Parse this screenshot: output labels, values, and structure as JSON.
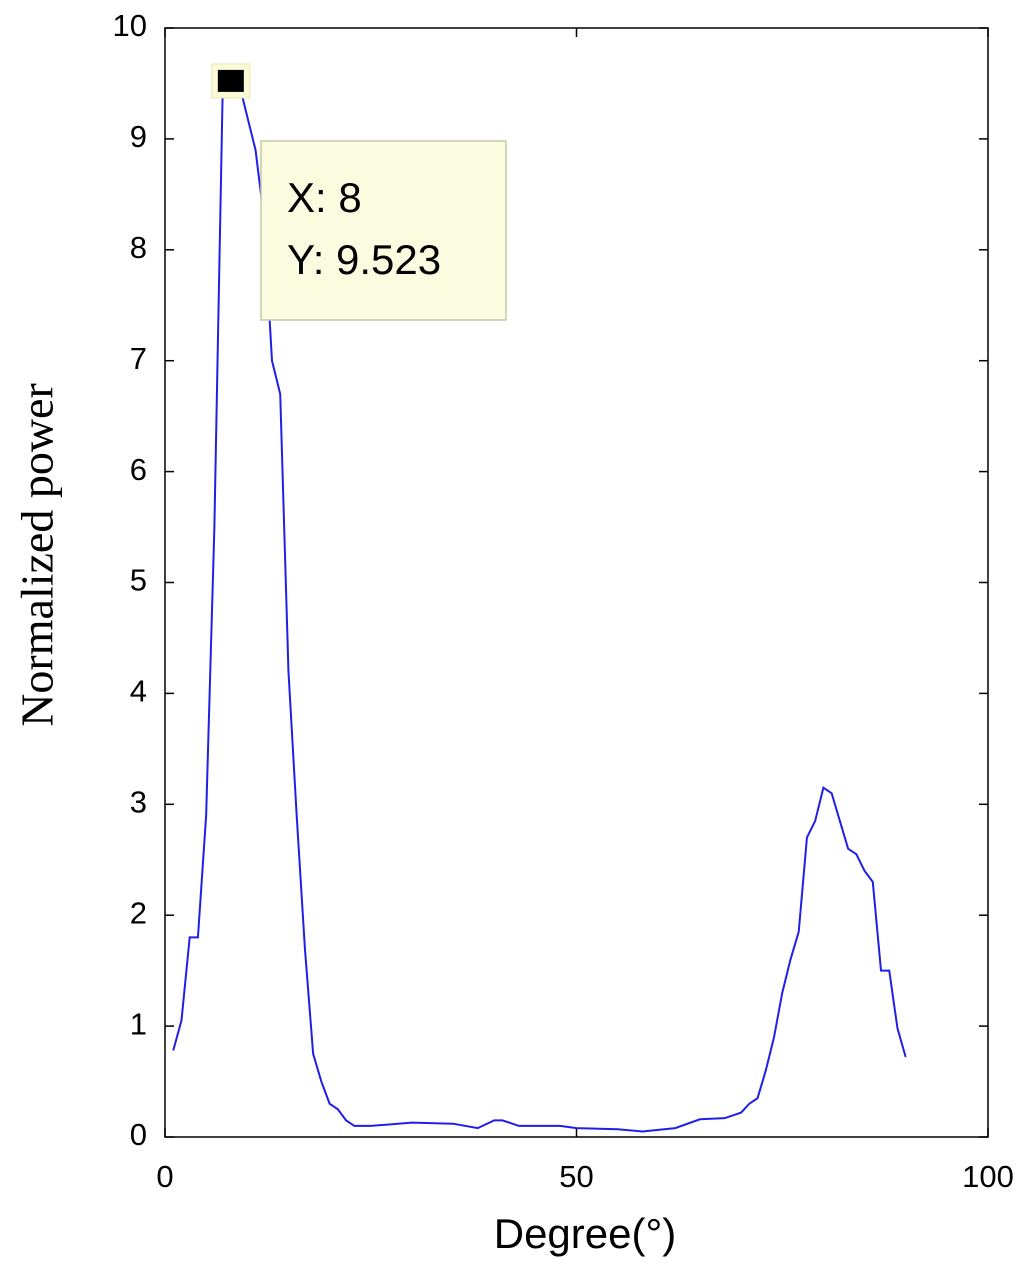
{
  "chart_data": {
    "type": "line",
    "x_label": "Degree(°)",
    "y_label": "Normalized power",
    "x": [
      1,
      2,
      3,
      4,
      5,
      6,
      7,
      8,
      9,
      10,
      11,
      12,
      13,
      14,
      15,
      16,
      17,
      18,
      19,
      20,
      21,
      22,
      23,
      25,
      30,
      35,
      38,
      40,
      41,
      43,
      48,
      50,
      55,
      58,
      62,
      65,
      68,
      70,
      71,
      72,
      73,
      74,
      75,
      76,
      77,
      78,
      79,
      80,
      81,
      82,
      83,
      84,
      85,
      86,
      87,
      88,
      89,
      90
    ],
    "series": [
      {
        "name": "power",
        "color": "#1f1fe8",
        "values": [
          0.78,
          1.05,
          1.8,
          1.8,
          2.9,
          5.5,
          9.4,
          9.523,
          9.5,
          9.2,
          8.9,
          8.3,
          7.0,
          6.7,
          4.2,
          2.9,
          1.7,
          0.75,
          0.5,
          0.3,
          0.25,
          0.15,
          0.1,
          0.1,
          0.13,
          0.12,
          0.08,
          0.15,
          0.15,
          0.1,
          0.1,
          0.08,
          0.07,
          0.05,
          0.08,
          0.16,
          0.17,
          0.22,
          0.3,
          0.35,
          0.6,
          0.9,
          1.3,
          1.6,
          1.85,
          2.7,
          2.85,
          3.15,
          3.1,
          2.85,
          2.6,
          2.55,
          2.4,
          2.3,
          1.5,
          1.5,
          0.98,
          0.72
        ]
      }
    ],
    "xlim": [
      0,
      100
    ],
    "xticks": [
      0,
      50,
      100
    ],
    "ylim": [
      0,
      10
    ],
    "yticks": [
      0,
      1,
      2,
      3,
      4,
      5,
      6,
      7,
      8,
      9,
      10
    ],
    "annotation": {
      "x": 8,
      "y": 9.523,
      "lines": [
        "X: 8",
        "Y: 9.523"
      ]
    }
  }
}
